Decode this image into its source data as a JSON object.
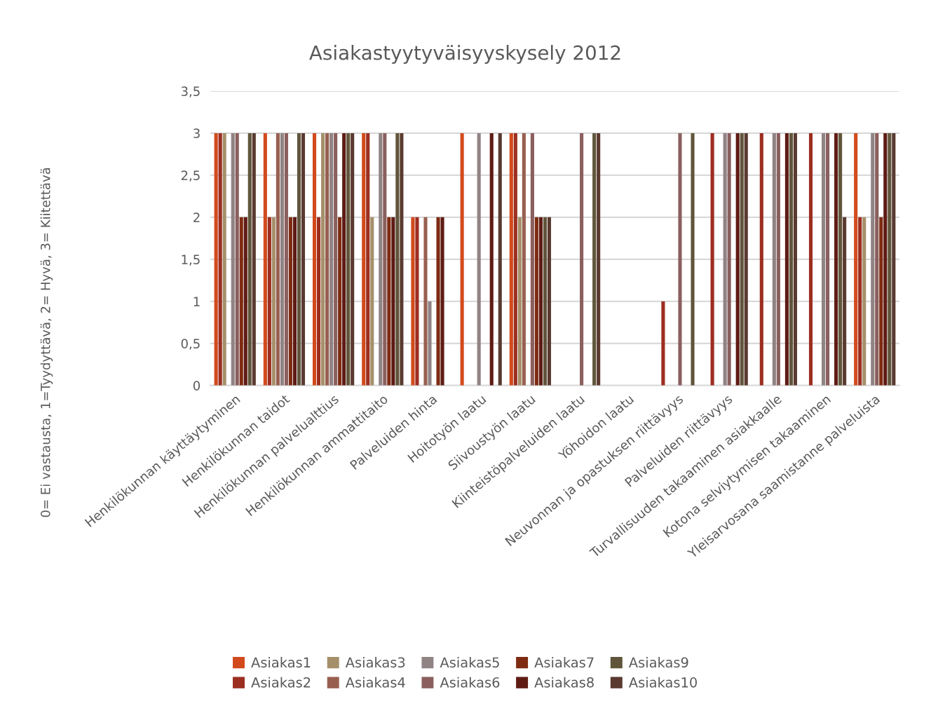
{
  "chart_data": {
    "type": "bar",
    "title": "Asiakastyytyväisyyskysely 2012",
    "ylabel": "0= Ei vastausta, 1=Tyydyttävä, 2= Hyvä, 3= Kiitettävä",
    "categories": [
      "Henkilökunnan käyttäytyminen",
      "Henkilökunnan taidot",
      "Henkilökunnan palvelualttius",
      "Henkilökunnan ammattitaito",
      "Palveluiden hinta",
      "Hoitotyön laatu",
      "Siivoustyön laatu",
      "Kiinteistöpalveluiden laatu",
      "Yöhoidon laatu",
      "Neuvonnan ja opastuksen riittävyys",
      "Palveluiden riittävyys",
      "Turvallisuuden takaaminen asiakkaalle",
      "Kotona selviytymisen takaaminen",
      "Yleisarvosana saamistanne palveluista"
    ],
    "series": [
      {
        "name": "Asiakas1",
        "color": "#d24a1c",
        "values": [
          3,
          3,
          3,
          3,
          2,
          3,
          3,
          0,
          0,
          0,
          0,
          0,
          0,
          3
        ]
      },
      {
        "name": "Asiakas2",
        "color": "#9c2e20",
        "values": [
          3,
          2,
          2,
          3,
          2,
          0,
          3,
          0,
          0,
          1,
          3,
          3,
          3,
          2
        ]
      },
      {
        "name": "Asiakas3",
        "color": "#a5906b",
        "values": [
          3,
          2,
          3,
          2,
          0,
          0,
          2,
          0,
          0,
          0,
          0,
          0,
          0,
          2
        ]
      },
      {
        "name": "Asiakas4",
        "color": "#985f50",
        "values": [
          0,
          3,
          3,
          0,
          2,
          0,
          3,
          0,
          0,
          0,
          0,
          0,
          0,
          0
        ]
      },
      {
        "name": "Asiakas5",
        "color": "#908384",
        "values": [
          3,
          3,
          3,
          3,
          1,
          3,
          0,
          0,
          0,
          0,
          3,
          3,
          3,
          3
        ]
      },
      {
        "name": "Asiakas6",
        "color": "#8a5f5e",
        "values": [
          3,
          3,
          3,
          3,
          0,
          0,
          3,
          3,
          0,
          3,
          3,
          3,
          3,
          3
        ]
      },
      {
        "name": "Asiakas7",
        "color": "#7e2b12",
        "values": [
          2,
          2,
          2,
          2,
          2,
          0,
          2,
          0,
          0,
          0,
          0,
          0,
          0,
          2
        ]
      },
      {
        "name": "Asiakas8",
        "color": "#5e1b14",
        "values": [
          2,
          2,
          3,
          2,
          2,
          3,
          2,
          0,
          0,
          0,
          3,
          3,
          3,
          3
        ]
      },
      {
        "name": "Asiakas9",
        "color": "#60553b",
        "values": [
          3,
          3,
          3,
          3,
          0,
          0,
          2,
          3,
          0,
          3,
          3,
          3,
          3,
          3
        ]
      },
      {
        "name": "Asiakas10",
        "color": "#5a3a30",
        "values": [
          3,
          3,
          3,
          3,
          0,
          3,
          2,
          3,
          0,
          0,
          3,
          3,
          2,
          3
        ]
      }
    ],
    "ylim": [
      0,
      3.5
    ],
    "yticks": [
      0,
      {
        "value": 0.5,
        "label": "0,5"
      },
      1,
      {
        "value": 1.5,
        "label": "1,5"
      },
      2,
      {
        "value": 2.5,
        "label": "2,5"
      },
      3,
      {
        "value": 3.5,
        "label": "3,5"
      }
    ],
    "grid": "y",
    "legend": "bottom"
  }
}
